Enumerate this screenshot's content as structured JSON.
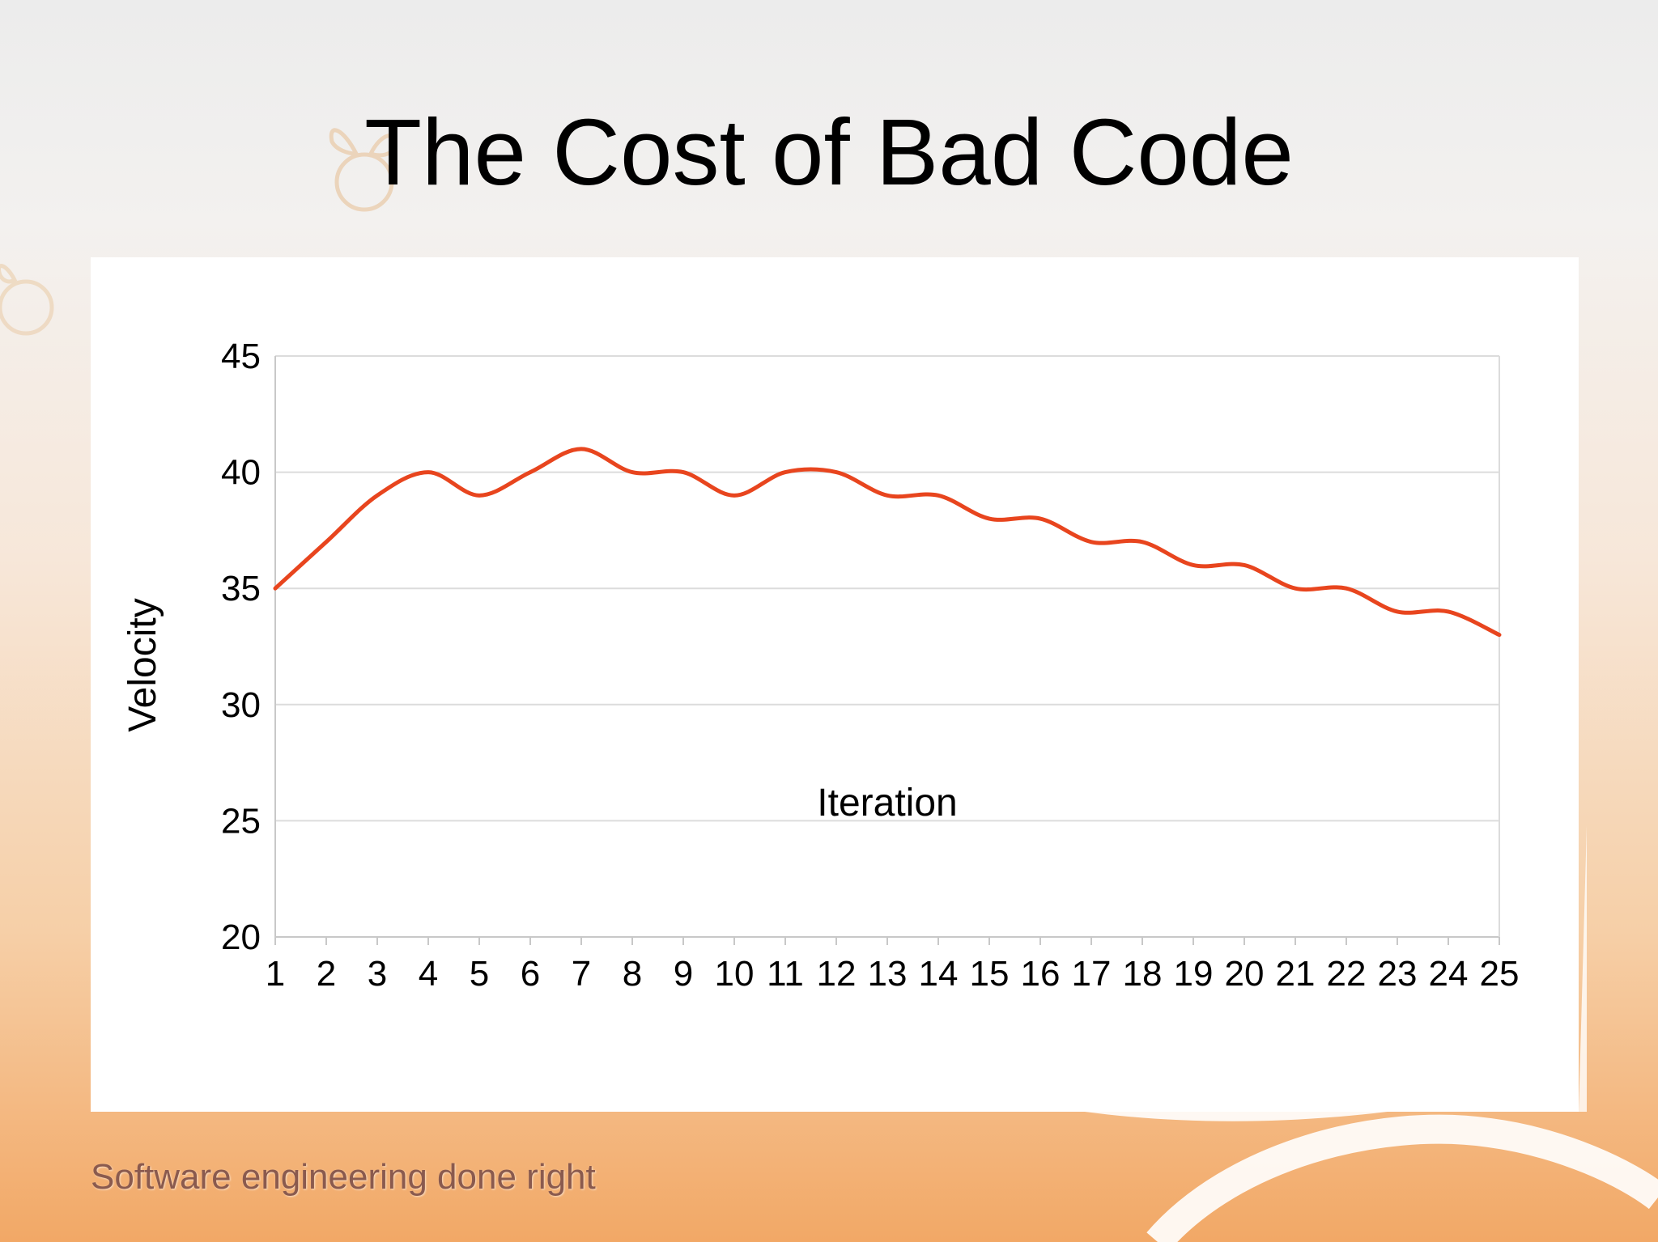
{
  "slide": {
    "title": "The Cost of Bad Code",
    "footer": "Software engineering done right"
  },
  "colors": {
    "line": "#e8451e",
    "grid": "#dcdcdc",
    "axis": "#c8c8c8"
  },
  "chart_data": {
    "type": "line",
    "title": "",
    "xlabel": "Iteration",
    "ylabel": "Velocity",
    "ylim": [
      20,
      45
    ],
    "yticks": [
      20,
      25,
      30,
      35,
      40,
      45
    ],
    "grid": true,
    "legend": "none",
    "categories": [
      "1",
      "2",
      "3",
      "4",
      "5",
      "6",
      "7",
      "8",
      "9",
      "10",
      "11",
      "12",
      "13",
      "14",
      "15",
      "16",
      "17",
      "18",
      "19",
      "20",
      "21",
      "22",
      "23",
      "24",
      "25"
    ],
    "series": [
      {
        "values": [
          35,
          37,
          39,
          40,
          39,
          40,
          41,
          40,
          40,
          39,
          40,
          40,
          39,
          39,
          38,
          38,
          37,
          37,
          36,
          36,
          35,
          35,
          34,
          34,
          33
        ]
      }
    ]
  }
}
